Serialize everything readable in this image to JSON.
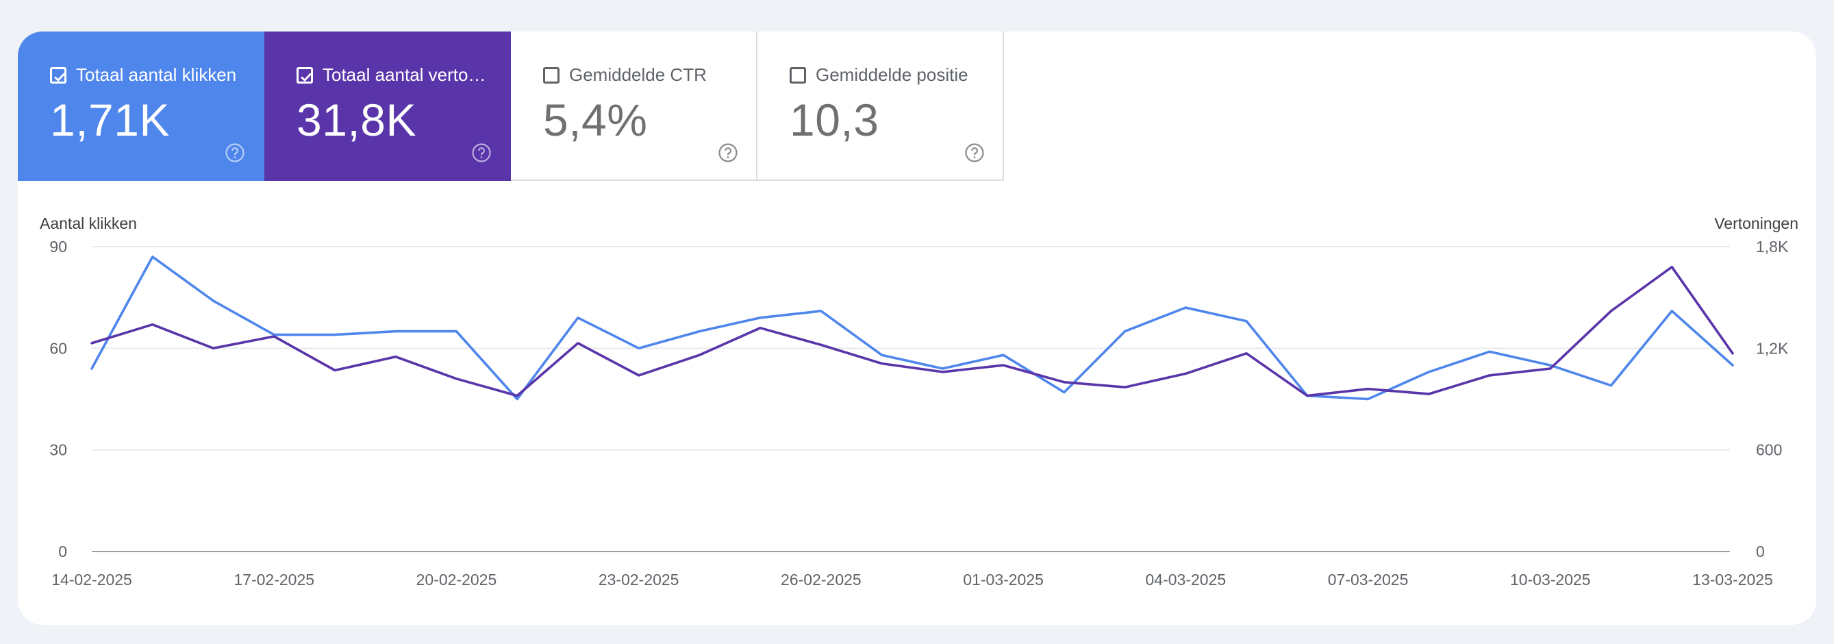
{
  "metrics": [
    {
      "label": "Totaal aantal klikken",
      "value": "1,71K",
      "checked": true,
      "color": "#4f86ec"
    },
    {
      "label": "Totaal aantal vertoningen",
      "value": "31,8K",
      "checked": true,
      "color": "#5935a9"
    },
    {
      "label": "Gemiddelde CTR",
      "value": "5,4%",
      "checked": false
    },
    {
      "label": "Gemiddelde positie",
      "value": "10,3",
      "checked": false
    }
  ],
  "help_icon": "help-circle-icon",
  "chart_data": {
    "type": "line",
    "y_left_label": "Aantal klikken",
    "y_right_label": "Vertoningen",
    "y_left_ticks": [
      "0",
      "30",
      "60",
      "90"
    ],
    "y_right_ticks": [
      "0",
      "600",
      "1,2K",
      "1,8K"
    ],
    "y_left_range": [
      0,
      90
    ],
    "y_right_range": [
      0,
      1800
    ],
    "x_tick_labels": [
      "14-02-2025",
      "17-02-2025",
      "20-02-2025",
      "23-02-2025",
      "26-02-2025",
      "01-03-2025",
      "04-03-2025",
      "07-03-2025",
      "10-03-2025",
      "13-03-2025"
    ],
    "x": [
      "14-02-2025",
      "15-02-2025",
      "16-02-2025",
      "17-02-2025",
      "18-02-2025",
      "19-02-2025",
      "20-02-2025",
      "21-02-2025",
      "22-02-2025",
      "23-02-2025",
      "24-02-2025",
      "25-02-2025",
      "26-02-2025",
      "27-02-2025",
      "28-02-2025",
      "01-03-2025",
      "02-03-2025",
      "03-03-2025",
      "04-03-2025",
      "05-03-2025",
      "06-03-2025",
      "07-03-2025",
      "08-03-2025",
      "09-03-2025",
      "10-03-2025",
      "11-03-2025",
      "12-03-2025",
      "13-03-2025"
    ],
    "grid": true,
    "series": [
      {
        "name": "Totaal aantal klikken",
        "axis": "left",
        "color": "#4f86ec",
        "values": [
          54,
          87,
          74,
          64,
          64,
          65,
          65,
          45,
          69,
          60,
          65,
          69,
          71,
          58,
          54,
          58,
          47,
          65,
          72,
          68,
          46,
          45,
          53,
          59,
          55,
          49,
          71,
          55
        ]
      },
      {
        "name": "Totaal aantal vertoningen",
        "axis": "right",
        "color": "#5935a9",
        "values": [
          1230,
          1340,
          1200,
          1270,
          1070,
          1150,
          1020,
          920,
          1230,
          1040,
          1160,
          1320,
          1220,
          1110,
          1060,
          1100,
          1000,
          970,
          1050,
          1170,
          920,
          960,
          930,
          1040,
          1080,
          1420,
          1680,
          1170
        ]
      }
    ]
  }
}
